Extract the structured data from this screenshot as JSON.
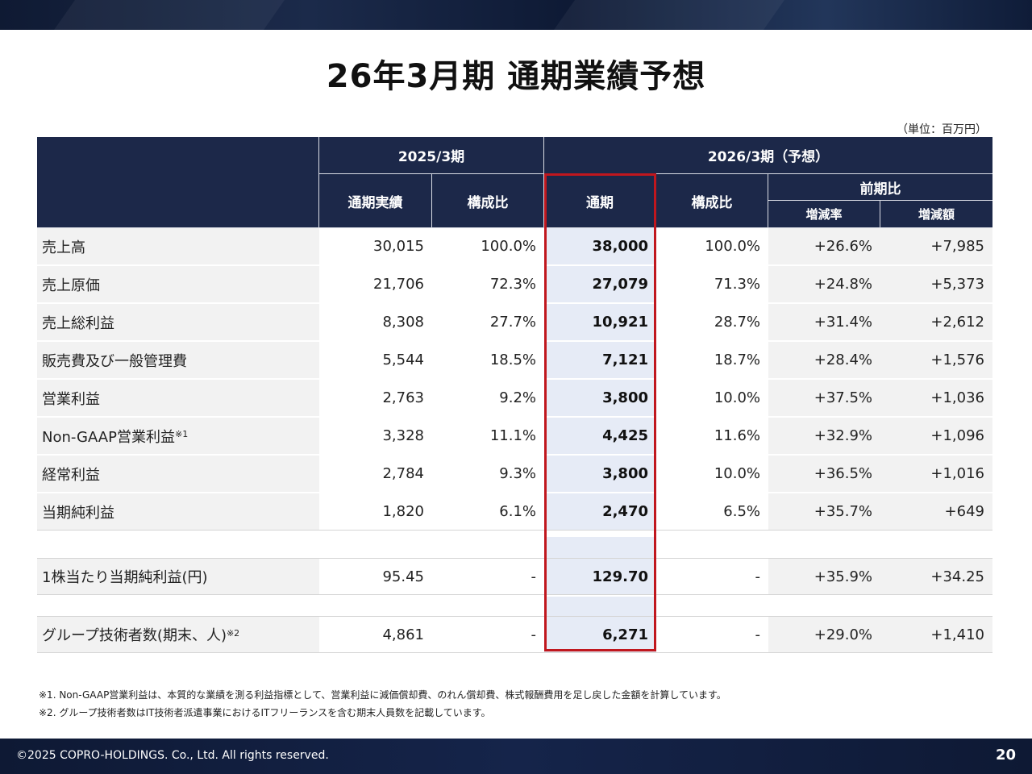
{
  "title": "26年3月期 通期業績予想",
  "unit": "（単位：百万円）",
  "headers": {
    "fy2025": "2025/3期",
    "fy2026": "2026/3期（予想）",
    "actual": "通期実績",
    "ratio": "構成比",
    "full_year": "通期",
    "ratio2": "構成比",
    "yoy": "前期比",
    "change_rate": "増減率",
    "change_amount": "増減額"
  },
  "rows": [
    {
      "label": "売上高",
      "actual": "30,015",
      "ratio": "100.0%",
      "forecast": "38,000",
      "ratio2": "100.0%",
      "rate": "+26.6%",
      "amount": "+7,985"
    },
    {
      "label": "売上原価",
      "actual": "21,706",
      "ratio": "72.3%",
      "forecast": "27,079",
      "ratio2": "71.3%",
      "rate": "+24.8%",
      "amount": "+5,373"
    },
    {
      "label": "売上総利益",
      "actual": "8,308",
      "ratio": "27.7%",
      "forecast": "10,921",
      "ratio2": "28.7%",
      "rate": "+31.4%",
      "amount": "+2,612"
    },
    {
      "label": "販売費及び一般管理費",
      "actual": "5,544",
      "ratio": "18.5%",
      "forecast": "7,121",
      "ratio2": "18.7%",
      "rate": "+28.4%",
      "amount": "+1,576"
    },
    {
      "label": "営業利益",
      "actual": "2,763",
      "ratio": "9.2%",
      "forecast": "3,800",
      "ratio2": "10.0%",
      "rate": "+37.5%",
      "amount": "+1,036"
    },
    {
      "label": "Non-GAAP営業利益",
      "sup": "※1",
      "actual": "3,328",
      "ratio": "11.1%",
      "forecast": "4,425",
      "ratio2": "11.6%",
      "rate": "+32.9%",
      "amount": "+1,096"
    },
    {
      "label": "経常利益",
      "actual": "2,784",
      "ratio": "9.3%",
      "forecast": "3,800",
      "ratio2": "10.0%",
      "rate": "+36.5%",
      "amount": "+1,016"
    },
    {
      "label": "当期純利益",
      "actual": "1,820",
      "ratio": "6.1%",
      "forecast": "2,470",
      "ratio2": "6.5%",
      "rate": "+35.7%",
      "amount": "+649"
    }
  ],
  "eps_row": {
    "label": "1株当たり当期純利益(円)",
    "actual": "95.45",
    "ratio": "-",
    "forecast": "129.70",
    "ratio2": "-",
    "rate": "+35.9%",
    "amount": "+34.25"
  },
  "engineer_row": {
    "label": "グループ技術者数(期末、人)",
    "sup": "※2",
    "actual": "4,861",
    "ratio": "-",
    "forecast": "6,271",
    "ratio2": "-",
    "rate": "+29.0%",
    "amount": "+1,410"
  },
  "notes": [
    "※1. Non-GAAP営業利益は、本質的な業績を測る利益指標として、営業利益に減価償却費、のれん償却費、株式報酬費用を足し戻した金額を計算しています。",
    "※2. グループ技術者数はIT技術者派遣事業におけるITフリーランスを含む期末人員数を記載しています。"
  ],
  "footer": {
    "copyright": "©2025 COPRO-HOLDINGS. Co., Ltd. All rights reserved.",
    "page": "20"
  },
  "colors": {
    "header_bg": "#1c2849",
    "highlight_bg": "#e6ebf6",
    "highlight_border": "#c0171e",
    "label_bg": "#f2f2f2"
  }
}
